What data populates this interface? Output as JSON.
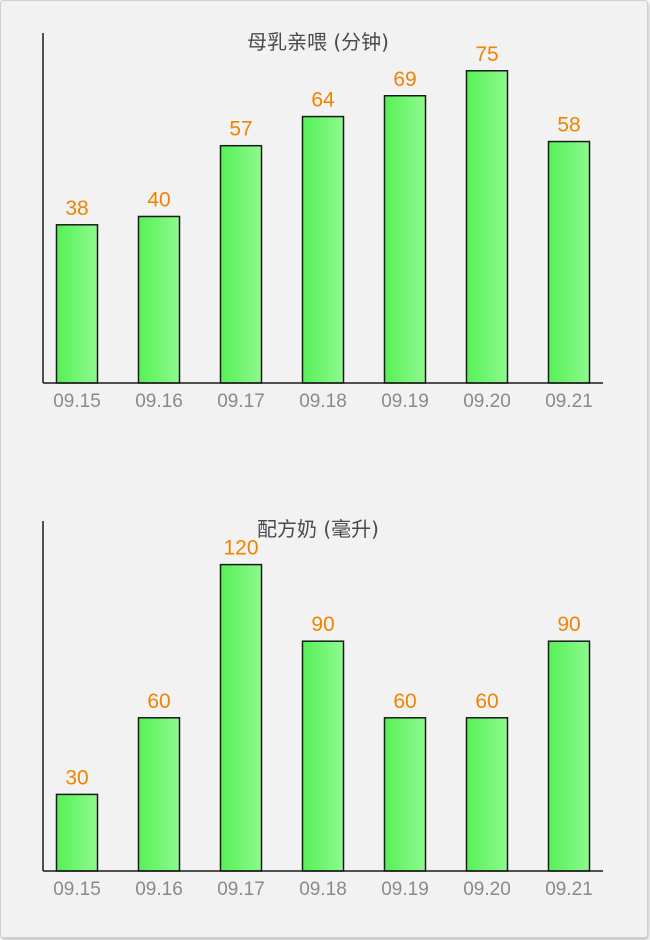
{
  "chart_data": [
    {
      "type": "bar",
      "title": "母乳亲喂 (分钟)",
      "categories": [
        "09.15",
        "09.16",
        "09.17",
        "09.18",
        "09.19",
        "09.20",
        "09.21"
      ],
      "values": [
        38,
        40,
        57,
        64,
        69,
        75,
        58
      ],
      "ylim": [
        0,
        92
      ],
      "grid": false,
      "legend": "none",
      "bar_color_start": "#56f156",
      "bar_color_end": "#8ef98e",
      "label_color": "#f08300"
    },
    {
      "type": "bar",
      "title": "配方奶 (毫升)",
      "categories": [
        "09.15",
        "09.16",
        "09.17",
        "09.18",
        "09.19",
        "09.20",
        "09.21"
      ],
      "values": [
        30,
        60,
        120,
        90,
        60,
        60,
        90
      ],
      "ylim": [
        0,
        150
      ],
      "grid": false,
      "legend": "none",
      "bar_color_start": "#56f156",
      "bar_color_end": "#8ef98e",
      "label_color": "#f08300"
    }
  ]
}
